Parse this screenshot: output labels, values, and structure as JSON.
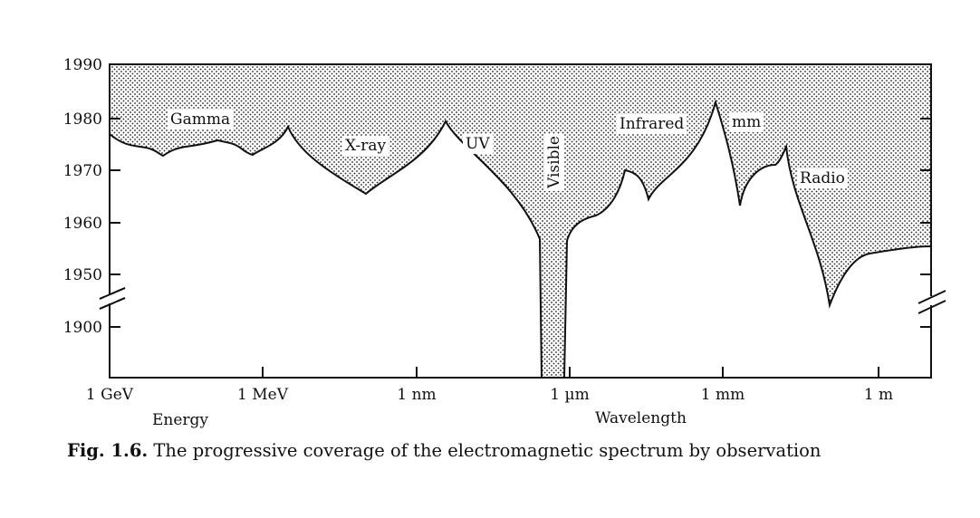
{
  "chart_data": {
    "type": "area",
    "ylabel_ticks": [
      "1990",
      "1980",
      "1970",
      "1960",
      "1950",
      "1900"
    ],
    "y_break": {
      "between": [
        "1900",
        "1950"
      ]
    },
    "x_tick_labels": [
      "1 GeV",
      "1 MeV",
      "1 nm",
      "1 µm",
      "1 mm",
      "1 m"
    ],
    "x_axis_names": {
      "energy": "Energy",
      "wavelength": "Wavelength"
    },
    "bands": [
      "Gamma",
      "X-ray",
      "UV",
      "Visible",
      "Infrared",
      "mm",
      "Radio"
    ],
    "fill": "stippled dots above the coverage curve",
    "coverage_curve": {
      "description": "Year in which each part of the spectrum was first observed",
      "points": [
        {
          "x": "1 GeV",
          "y": 1975
        },
        {
          "x": "Gamma mid",
          "y": 1972
        },
        {
          "x": "Gamma",
          "y": 1976
        },
        {
          "x": "1 MeV",
          "y": 1978
        },
        {
          "x": "X-ray",
          "y": 1966
        },
        {
          "x": "UV edge",
          "y": 1979
        },
        {
          "x": "UV",
          "y": 1970
        },
        {
          "x": "Visible",
          "y": 1900
        },
        {
          "x": "Infrared near",
          "y": 1960
        },
        {
          "x": "Infrared",
          "y": 1970
        },
        {
          "x": "Infrared dip",
          "y": 1965
        },
        {
          "x": "mm peak",
          "y": 1983
        },
        {
          "x": "mm dip",
          "y": 1964
        },
        {
          "x": "Radio edge",
          "y": 1974
        },
        {
          "x": "Radio dip",
          "y": 1945
        },
        {
          "x": "1 m",
          "y": 1955
        }
      ]
    }
  },
  "caption": {
    "label": "Fig. 1.6.",
    "text": " The progressive coverage of the electromagnetic spectrum by observation"
  }
}
